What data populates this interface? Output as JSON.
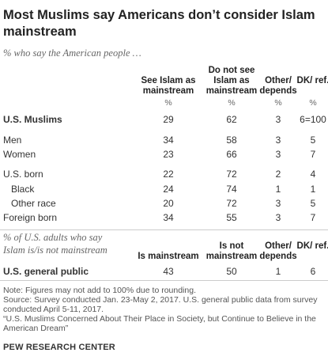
{
  "chart_data": {
    "type": "table",
    "title": "Most Muslims say Americans don’t consider Islam mainstream",
    "subtitle": "% who say the American people …",
    "columns": [
      "See Islam as mainstream",
      "Do not see Islam as mainstream",
      "Other/ depends",
      "DK/ ref."
    ],
    "units": [
      "%",
      "%",
      "%",
      "%"
    ],
    "rows": [
      {
        "label": "U.S. Muslims",
        "values": [
          "29",
          "62",
          "3",
          "6=100"
        ],
        "bold": true
      },
      {
        "label": "Men",
        "values": [
          "34",
          "58",
          "3",
          "5"
        ]
      },
      {
        "label": "Women",
        "values": [
          "23",
          "66",
          "3",
          "7"
        ]
      },
      {
        "label": "U.S. born",
        "values": [
          "22",
          "72",
          "2",
          "4"
        ]
      },
      {
        "label": "Black",
        "values": [
          "24",
          "74",
          "1",
          "1"
        ],
        "indent": true
      },
      {
        "label": "Other race",
        "values": [
          "20",
          "72",
          "3",
          "5"
        ],
        "indent": true
      },
      {
        "label": "Foreign born",
        "values": [
          "34",
          "55",
          "3",
          "7"
        ]
      }
    ],
    "section2": {
      "subtitle_line1": "% of U.S. adults who say",
      "subtitle_line2": "Islam is/is not mainstream",
      "columns": [
        "Is mainstream",
        "Is not mainstream",
        "Other/ depends",
        "DK/ ref."
      ],
      "row": {
        "label": "U.S. general public",
        "values": [
          "43",
          "50",
          "1",
          "6"
        ]
      }
    }
  },
  "notes": [
    "Note: Figures may not add to 100% due to rounding.",
    "Source: Survey conducted Jan. 23-May 2, 2017. U.S. general public data from survey",
    "conducted April 5-11, 2017.",
    "“U.S. Muslims Concerned About Their Place in Society, but Continue to Believe in the",
    "American Dream”"
  ],
  "brand": "PEW RESEARCH CENTER"
}
